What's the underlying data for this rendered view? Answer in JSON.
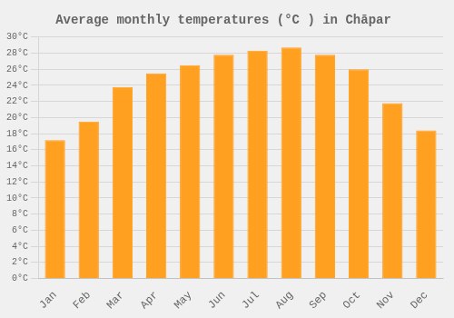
{
  "chart_data": {
    "type": "bar",
    "title": "Average monthly temperatures (°C ) in Chāpar",
    "categories": [
      "Jan",
      "Feb",
      "Mar",
      "Apr",
      "May",
      "Jun",
      "Jul",
      "Aug",
      "Sep",
      "Oct",
      "Nov",
      "Dec"
    ],
    "values": [
      17.2,
      19.5,
      23.8,
      25.5,
      26.5,
      27.8,
      28.3,
      28.7,
      27.8,
      26.0,
      21.8,
      18.4
    ],
    "color": "#FFA020",
    "ylim": [
      0,
      30
    ],
    "yticks": [
      {
        "value": 0,
        "label": "0°C"
      },
      {
        "value": 2,
        "label": "2°C"
      },
      {
        "value": 4,
        "label": "4°C"
      },
      {
        "value": 6,
        "label": "6°C"
      },
      {
        "value": 8,
        "label": "8°C"
      },
      {
        "value": 10,
        "label": "10°C"
      },
      {
        "value": 12,
        "label": "12°C"
      },
      {
        "value": 14,
        "label": "14°C"
      },
      {
        "value": 16,
        "label": "16°C"
      },
      {
        "value": 18,
        "label": "18°C"
      },
      {
        "value": 20,
        "label": "20°C"
      },
      {
        "value": 22,
        "label": "22°C"
      },
      {
        "value": 24,
        "label": "24°C"
      },
      {
        "value": 26,
        "label": "26°C"
      },
      {
        "value": 28,
        "label": "28°C"
      },
      {
        "value": 30,
        "label": "30°C"
      }
    ],
    "grid": true
  }
}
